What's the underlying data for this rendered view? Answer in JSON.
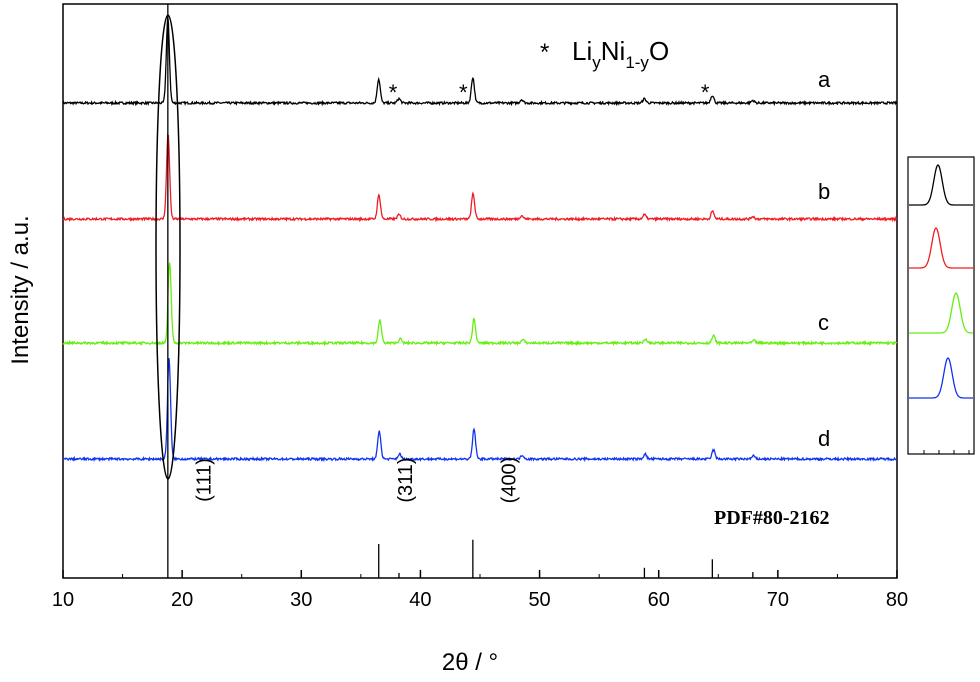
{
  "chart_data": {
    "type": "line",
    "xlabel": "2θ / °",
    "ylabel": "Intensity / a.u.",
    "xlim": [
      10,
      80
    ],
    "xticks": [
      10,
      20,
      30,
      40,
      50,
      60,
      70,
      80
    ],
    "legend": {
      "marker": "*",
      "text_main": "Li",
      "sub1": "y",
      "mid": "Ni",
      "sub2": "1-y",
      "end": "O"
    },
    "reference_label": "PDF#80-2162",
    "hkl_labels": [
      {
        "text": "(111)",
        "x": 22.4
      },
      {
        "text": "(311)",
        "x": 39.3
      },
      {
        "text": "(400)",
        "x": 48.0
      }
    ],
    "impurity_marks": [
      {
        "symbol": "*",
        "x": 37.7,
        "series": "a"
      },
      {
        "symbol": "*",
        "x": 43.6,
        "series": "a"
      },
      {
        "symbol": "*",
        "x": 63.9,
        "series": "a"
      }
    ],
    "peaks": [
      {
        "x": 18.8,
        "rel": 1.0
      },
      {
        "x": 36.5,
        "rel": 0.28
      },
      {
        "x": 38.2,
        "rel": 0.05
      },
      {
        "x": 44.4,
        "rel": 0.3
      },
      {
        "x": 48.5,
        "rel": 0.04
      },
      {
        "x": 58.8,
        "rel": 0.05
      },
      {
        "x": 64.5,
        "rel": 0.09
      },
      {
        "x": 67.9,
        "rel": 0.03
      }
    ],
    "series": [
      {
        "name": "a",
        "color": "#000000",
        "offset": [
          0.0,
          0.0,
          0.0,
          0.0,
          0.0,
          0.0,
          0.0,
          0.0
        ],
        "scale": 0.95
      },
      {
        "name": "b",
        "color": "#ee1c25",
        "offset": [
          0.02,
          0.02,
          0.0,
          0.02,
          0.0,
          0.0,
          0.02,
          0.0
        ],
        "scale": 0.95
      },
      {
        "name": "c",
        "color": "#66ee11",
        "offset": [
          0.15,
          0.1,
          0.1,
          0.1,
          0.1,
          0.1,
          0.1,
          0.1
        ],
        "scale": 0.85
      },
      {
        "name": "d",
        "color": "#1133ee",
        "offset": [
          0.1,
          0.05,
          0.05,
          0.1,
          0.05,
          0.05,
          0.1,
          0.05
        ],
        "scale": 1.0
      }
    ],
    "reference_sticks": [
      {
        "x": 18.8,
        "rel": 1.0
      },
      {
        "x": 36.5,
        "rel": 0.4
      },
      {
        "x": 38.2,
        "rel": 0.06
      },
      {
        "x": 44.4,
        "rel": 0.45
      },
      {
        "x": 58.8,
        "rel": 0.12
      },
      {
        "x": 64.5,
        "rel": 0.22
      },
      {
        "x": 67.9,
        "rel": 0.07
      }
    ]
  }
}
